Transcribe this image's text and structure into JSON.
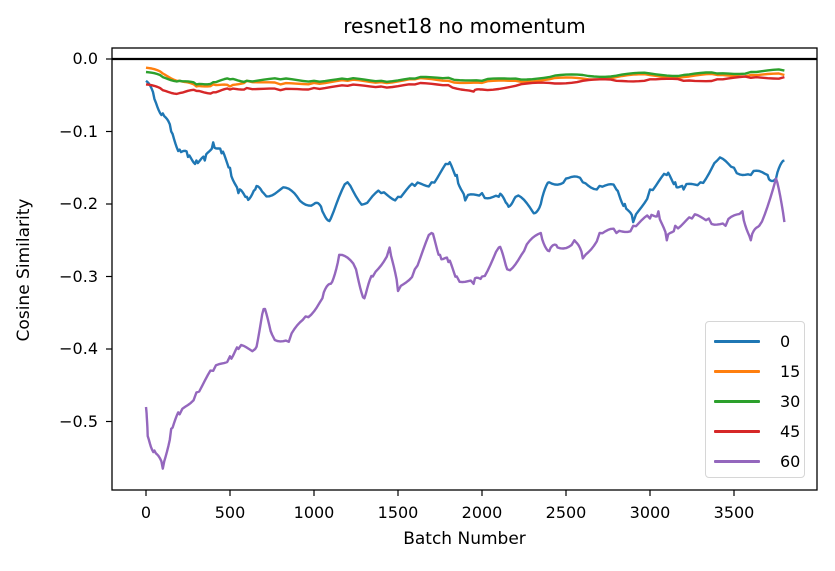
{
  "chart_data": {
    "type": "line",
    "title": "resnet18 no momentum",
    "xlabel": "Batch Number",
    "ylabel": "Cosine Similarity",
    "xlim": [
      -200,
      4000
    ],
    "ylim": [
      -0.59,
      0.015
    ],
    "xticks": [
      0,
      500,
      1000,
      1500,
      2000,
      2500,
      3000,
      3500
    ],
    "xtick_labels": [
      "0",
      "500",
      "1000",
      "1500",
      "2000",
      "2500",
      "3000",
      "3500"
    ],
    "yticks": [
      0.0,
      -0.1,
      -0.2,
      -0.3,
      -0.4,
      -0.5
    ],
    "ytick_labels": [
      "0.0",
      "−0.1",
      "−0.2",
      "−0.3",
      "−0.4",
      "−0.5"
    ],
    "grid": false,
    "hline": {
      "y": 0.0,
      "color": "#000000"
    },
    "legend_position": "lower right",
    "series": [
      {
        "name": "0",
        "color": "#1f77b4",
        "x": [
          0,
          50,
          100,
          150,
          200,
          250,
          300,
          350,
          400,
          450,
          500,
          550,
          600,
          650,
          700,
          800,
          900,
          1000,
          1050,
          1100,
          1200,
          1300,
          1400,
          1500,
          1600,
          1700,
          1800,
          1850,
          1900,
          2000,
          2100,
          2150,
          2200,
          2300,
          2350,
          2400,
          2500,
          2600,
          2700,
          2800,
          2850,
          2900,
          3000,
          3100,
          3150,
          3200,
          3300,
          3400,
          3500,
          3600,
          3700,
          3750,
          3800
        ],
        "y": [
          -0.03,
          -0.055,
          -0.075,
          -0.1,
          -0.125,
          -0.135,
          -0.14,
          -0.14,
          -0.115,
          -0.13,
          -0.15,
          -0.185,
          -0.19,
          -0.18,
          -0.185,
          -0.18,
          -0.19,
          -0.2,
          -0.21,
          -0.22,
          -0.17,
          -0.2,
          -0.185,
          -0.19,
          -0.175,
          -0.17,
          -0.145,
          -0.16,
          -0.195,
          -0.185,
          -0.19,
          -0.2,
          -0.19,
          -0.21,
          -0.2,
          -0.17,
          -0.165,
          -0.17,
          -0.175,
          -0.18,
          -0.2,
          -0.225,
          -0.18,
          -0.16,
          -0.17,
          -0.18,
          -0.17,
          -0.14,
          -0.15,
          -0.16,
          -0.16,
          -0.165,
          -0.14
        ]
      },
      {
        "name": "15",
        "color": "#ff7f0e",
        "x": [
          0,
          100,
          200,
          300,
          400,
          500,
          600,
          800,
          1000,
          1200,
          1400,
          1600,
          1800,
          2000,
          2200,
          2400,
          2600,
          2800,
          3000,
          3200,
          3400,
          3600,
          3800
        ],
        "y": [
          -0.012,
          -0.02,
          -0.03,
          -0.038,
          -0.035,
          -0.038,
          -0.03,
          -0.035,
          -0.033,
          -0.03,
          -0.032,
          -0.028,
          -0.03,
          -0.033,
          -0.03,
          -0.028,
          -0.027,
          -0.025,
          -0.022,
          -0.025,
          -0.022,
          -0.022,
          -0.022
        ]
      },
      {
        "name": "30",
        "color": "#2ca02c",
        "x": [
          0,
          100,
          200,
          300,
          400,
          500,
          600,
          800,
          1000,
          1200,
          1400,
          1600,
          1800,
          2000,
          2200,
          2400,
          2600,
          2800,
          3000,
          3200,
          3400,
          3600,
          3800
        ],
        "y": [
          -0.018,
          -0.025,
          -0.03,
          -0.035,
          -0.032,
          -0.028,
          -0.03,
          -0.028,
          -0.03,
          -0.028,
          -0.03,
          -0.027,
          -0.026,
          -0.03,
          -0.027,
          -0.025,
          -0.022,
          -0.023,
          -0.02,
          -0.022,
          -0.02,
          -0.018,
          -0.016
        ]
      },
      {
        "name": "45",
        "color": "#d62728",
        "x": [
          0,
          100,
          200,
          300,
          400,
          500,
          600,
          800,
          1000,
          1200,
          1400,
          1600,
          1800,
          1950,
          2000,
          2200,
          2400,
          2600,
          2800,
          3000,
          3200,
          3400,
          3600,
          3800
        ],
        "y": [
          -0.035,
          -0.043,
          -0.047,
          -0.044,
          -0.046,
          -0.042,
          -0.04,
          -0.043,
          -0.04,
          -0.037,
          -0.038,
          -0.035,
          -0.036,
          -0.045,
          -0.042,
          -0.037,
          -0.033,
          -0.03,
          -0.03,
          -0.028,
          -0.03,
          -0.028,
          -0.026,
          -0.025
        ]
      },
      {
        "name": "60",
        "color": "#9467bd",
        "x": [
          0,
          10,
          50,
          100,
          150,
          200,
          300,
          400,
          500,
          550,
          650,
          700,
          750,
          850,
          950,
          1050,
          1100,
          1150,
          1250,
          1300,
          1350,
          1450,
          1500,
          1600,
          1700,
          1750,
          1800,
          1850,
          1950,
          2000,
          2100,
          2150,
          2250,
          2350,
          2400,
          2450,
          2550,
          2600,
          2700,
          2800,
          2900,
          3000,
          3050,
          3100,
          3150,
          3250,
          3350,
          3450,
          3550,
          3600,
          3650,
          3750,
          3800
        ],
        "y": [
          -0.48,
          -0.52,
          -0.54,
          -0.565,
          -0.51,
          -0.49,
          -0.46,
          -0.43,
          -0.41,
          -0.4,
          -0.4,
          -0.345,
          -0.38,
          -0.39,
          -0.355,
          -0.33,
          -0.31,
          -0.27,
          -0.29,
          -0.33,
          -0.3,
          -0.26,
          -0.32,
          -0.29,
          -0.24,
          -0.27,
          -0.28,
          -0.3,
          -0.31,
          -0.3,
          -0.26,
          -0.29,
          -0.265,
          -0.24,
          -0.265,
          -0.26,
          -0.25,
          -0.275,
          -0.24,
          -0.24,
          -0.23,
          -0.22,
          -0.21,
          -0.25,
          -0.23,
          -0.22,
          -0.22,
          -0.23,
          -0.21,
          -0.25,
          -0.23,
          -0.165,
          -0.225
        ]
      }
    ]
  },
  "legend": {
    "items": [
      {
        "label": "0",
        "color": "#1f77b4"
      },
      {
        "label": "15",
        "color": "#ff7f0e"
      },
      {
        "label": "30",
        "color": "#2ca02c"
      },
      {
        "label": "45",
        "color": "#d62728"
      },
      {
        "label": "60",
        "color": "#9467bd"
      }
    ]
  }
}
